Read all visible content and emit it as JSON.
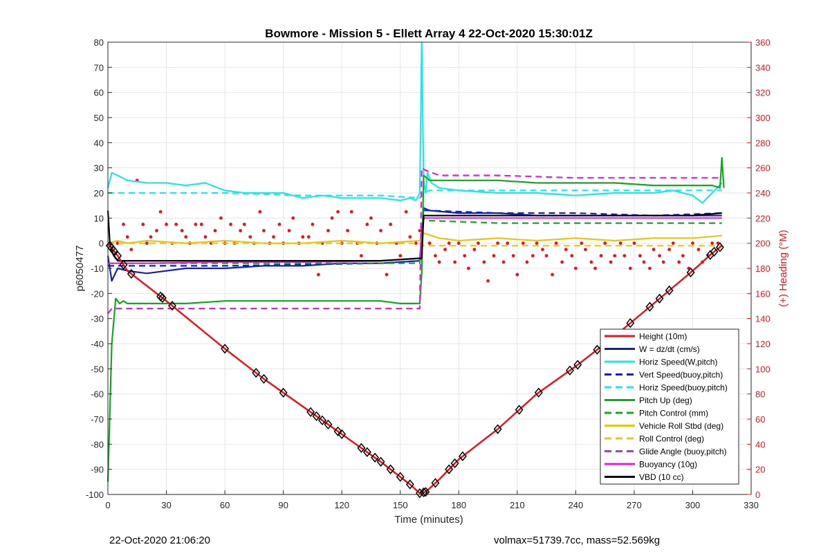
{
  "chart_data": {
    "type": "line",
    "title": "Bowmore - Mission 5 - Ellett Array 4 22-Oct-2020 15:30:01Z",
    "xlabel": "Time (minutes)",
    "ylabel": "p6050477",
    "y2label": "(+) Heading (°M)",
    "xlim": [
      0,
      330
    ],
    "ylim": [
      -100,
      80
    ],
    "y2lim": [
      0,
      360
    ],
    "xticks": [
      0,
      30,
      60,
      90,
      120,
      150,
      180,
      210,
      240,
      270,
      300,
      330
    ],
    "yticks": [
      -100,
      -90,
      -80,
      -70,
      -60,
      -50,
      -40,
      -30,
      -20,
      -10,
      0,
      10,
      20,
      30,
      40,
      50,
      60,
      70,
      80
    ],
    "y2ticks": [
      0,
      20,
      40,
      60,
      80,
      100,
      120,
      140,
      160,
      180,
      200,
      220,
      240,
      260,
      280,
      300,
      320,
      340,
      360
    ],
    "grid": true,
    "legend_position": "lower-right",
    "series": [
      {
        "name": "Height (10m)",
        "color": "#e8141b",
        "style": "solid",
        "x": [
          0,
          5,
          10,
          20,
          30,
          60,
          80,
          100,
          120,
          140,
          155,
          160,
          163,
          170,
          180,
          200,
          220,
          240,
          260,
          280,
          300,
          310,
          315
        ],
        "y": [
          0,
          -5,
          -11,
          -17,
          -23,
          -42,
          -54,
          -65,
          -76,
          -87,
          -96,
          -99.5,
          -99,
          -94,
          -86,
          -74,
          -60,
          -49,
          -37,
          -24,
          -11,
          -4,
          -1
        ]
      },
      {
        "name": "W = dz/dt (cm/s)",
        "color": "#1020b0",
        "style": "solid",
        "x": [
          0,
          2,
          5,
          10,
          20,
          40,
          60,
          80,
          100,
          120,
          140,
          160,
          162,
          165,
          180,
          200,
          220,
          240,
          260,
          280,
          300,
          315
        ],
        "y": [
          -5,
          -15,
          -10,
          -11,
          -12,
          -10,
          -10,
          -9,
          -9,
          -8,
          -8,
          -7,
          14,
          13,
          12,
          12,
          11,
          11,
          11,
          11,
          11,
          11
        ]
      },
      {
        "name": "Horiz Speed(W,pitch)",
        "color": "#1ee6ea",
        "style": "solid",
        "x": [
          0,
          2,
          5,
          10,
          20,
          30,
          40,
          50,
          60,
          70,
          80,
          90,
          100,
          110,
          120,
          130,
          140,
          150,
          155,
          158,
          160,
          161,
          162,
          163,
          164,
          166,
          170,
          180,
          200,
          220,
          240,
          260,
          280,
          290,
          300,
          305,
          310,
          315
        ],
        "y": [
          22,
          28,
          27,
          25,
          24,
          24,
          23,
          24,
          21,
          20,
          20,
          20,
          18,
          19,
          18,
          18,
          18,
          17,
          18,
          17,
          20,
          80,
          25,
          20,
          28,
          24,
          22,
          21,
          20,
          20,
          19,
          20,
          20,
          21,
          19,
          16,
          20,
          24
        ]
      },
      {
        "name": "Vert Speed(buoy,pitch)",
        "color": "#1020b0",
        "style": "dashed",
        "x": [
          0,
          5,
          20,
          60,
          100,
          140,
          160,
          162,
          165,
          200,
          240,
          280,
          315
        ],
        "y": [
          -9,
          -9,
          -9,
          -9,
          -8.5,
          -8,
          -7,
          13,
          13,
          12,
          12,
          11,
          12
        ]
      },
      {
        "name": "Horiz Speed(buoy,pitch)",
        "color": "#1ee6ea",
        "style": "dashed",
        "x": [
          0,
          5,
          20,
          60,
          100,
          140,
          160,
          162,
          165,
          200,
          240,
          280,
          315
        ],
        "y": [
          20,
          20,
          20,
          20,
          19,
          19,
          18,
          20,
          21,
          21,
          21,
          21,
          21
        ]
      },
      {
        "name": "Pitch Up (deg)",
        "color": "#10a81e",
        "style": "solid",
        "x": [
          0,
          2,
          4,
          6,
          8,
          10,
          20,
          40,
          60,
          80,
          100,
          120,
          140,
          150,
          160,
          161,
          162,
          165,
          180,
          200,
          220,
          240,
          260,
          280,
          300,
          310,
          314,
          315,
          316
        ],
        "y": [
          -95,
          -40,
          -22,
          -24,
          -23,
          -24,
          -24,
          -24,
          -23,
          -23,
          -23,
          -23,
          -23,
          -24,
          -24,
          -12,
          27,
          25,
          25,
          25,
          24,
          24,
          24,
          23,
          23,
          23,
          22,
          34,
          22
        ]
      },
      {
        "name": "Pitch Control (mm)",
        "color": "#10a81e",
        "style": "dashed",
        "x": [
          0,
          5,
          20,
          60,
          100,
          140,
          160,
          162,
          165,
          200,
          240,
          280,
          315
        ],
        "y": [
          -8,
          -8,
          -8,
          -8,
          -8,
          -8,
          -8,
          10,
          9,
          8,
          8,
          8,
          8
        ]
      },
      {
        "name": "Vehicle Roll Stbd (deg)",
        "color": "#e8c41a",
        "style": "solid",
        "x": [
          0,
          5,
          10,
          20,
          40,
          60,
          80,
          100,
          120,
          140,
          160,
          162,
          170,
          180,
          200,
          220,
          240,
          260,
          280,
          300,
          315
        ],
        "y": [
          0,
          1,
          0,
          1,
          0,
          1,
          0,
          0,
          1,
          0,
          1,
          4,
          2,
          1,
          2,
          1,
          2,
          1,
          2,
          2,
          3
        ]
      },
      {
        "name": "Roll Control (deg)",
        "color": "#e8c41a",
        "style": "dashed",
        "x": [
          0,
          5,
          20,
          60,
          100,
          140,
          160,
          162,
          170,
          200,
          240,
          280,
          315
        ],
        "y": [
          0,
          0,
          0,
          0,
          0,
          0,
          0,
          -1,
          -1,
          -1,
          -1,
          -1,
          -1
        ]
      },
      {
        "name": "Glide Angle (buoy,pitch)",
        "color": "#e01ee0",
        "style": "dashed",
        "x": [
          0,
          2,
          5,
          20,
          60,
          100,
          140,
          160,
          161,
          163,
          170,
          200,
          240,
          280,
          315
        ],
        "y": [
          -28,
          -26,
          -26,
          -26,
          -26,
          -26,
          -26,
          -26,
          30,
          29,
          27,
          27,
          26,
          26,
          26
        ]
      },
      {
        "name": "Buoyancy (10g)",
        "color": "#e01ee0",
        "style": "solid",
        "x": [
          0,
          5,
          20,
          60,
          100,
          140,
          160,
          162,
          170,
          200,
          240,
          280,
          315
        ],
        "y": [
          -8,
          -8,
          -8,
          -7.5,
          -7.5,
          -7,
          -6,
          10,
          10,
          10,
          10,
          10,
          10
        ]
      },
      {
        "name": "VBD (10 cc)",
        "color": "#000000",
        "style": "solid",
        "x": [
          0,
          1,
          2,
          3,
          4,
          5,
          8,
          20,
          60,
          100,
          140,
          160,
          161,
          162,
          170,
          200,
          240,
          280,
          300,
          315
        ],
        "y": [
          13,
          0,
          -3,
          -5,
          -6,
          -7,
          -7,
          -7,
          -7,
          -7,
          -7,
          -6,
          -6,
          11,
          11,
          11,
          11,
          11,
          11,
          12
        ]
      }
    ],
    "heading_points_deg": {
      "name": "Heading",
      "color": "#e8141b",
      "axis": "right",
      "x": [
        5,
        8,
        10,
        12,
        15,
        18,
        20,
        22,
        25,
        27,
        30,
        33,
        35,
        38,
        40,
        42,
        45,
        48,
        50,
        53,
        55,
        58,
        60,
        63,
        65,
        68,
        70,
        73,
        75,
        78,
        80,
        83,
        85,
        88,
        90,
        93,
        95,
        98,
        100,
        103,
        105,
        108,
        110,
        113,
        115,
        118,
        120,
        123,
        125,
        128,
        130,
        133,
        135,
        138,
        140,
        143,
        145,
        148,
        150,
        153,
        155,
        158,
        160,
        165,
        168,
        170,
        173,
        175,
        178,
        180,
        183,
        185,
        188,
        190,
        193,
        195,
        198,
        200,
        203,
        205,
        208,
        210,
        213,
        215,
        218,
        220,
        223,
        225,
        228,
        230,
        233,
        235,
        238,
        240,
        243,
        245,
        248,
        250,
        253,
        255,
        258,
        260,
        263,
        265,
        268,
        270,
        273,
        275,
        278,
        280,
        283,
        285,
        288,
        290,
        293,
        295,
        298,
        300,
        303,
        305,
        308,
        310,
        313
      ],
      "y": [
        200,
        215,
        205,
        195,
        250,
        215,
        200,
        205,
        210,
        225,
        215,
        200,
        215,
        210,
        205,
        200,
        215,
        215,
        205,
        200,
        210,
        220,
        200,
        215,
        200,
        210,
        215,
        205,
        200,
        225,
        210,
        200,
        205,
        215,
        200,
        210,
        220,
        200,
        205,
        205,
        215,
        175,
        200,
        210,
        220,
        225,
        200,
        210,
        225,
        200,
        190,
        215,
        220,
        200,
        210,
        175,
        215,
        200,
        190,
        225,
        205,
        200,
        210,
        200,
        190,
        185,
        195,
        200,
        185,
        200,
        190,
        180,
        195,
        200,
        185,
        170,
        190,
        200,
        185,
        200,
        190,
        175,
        200,
        185,
        190,
        200,
        195,
        190,
        175,
        200,
        185,
        195,
        190,
        180,
        200,
        195,
        185,
        180,
        190,
        200,
        185,
        190,
        200,
        190,
        180,
        200,
        190,
        185,
        180,
        195,
        190,
        185,
        195,
        200,
        185,
        190,
        180,
        200,
        195,
        185,
        190,
        200,
        200
      ]
    },
    "markers": {
      "x": [
        1,
        2,
        3,
        5,
        8,
        12,
        27,
        28,
        33,
        60,
        76,
        80,
        90,
        104,
        107,
        110,
        113,
        118,
        120,
        130,
        133,
        137,
        140,
        145,
        150,
        155,
        160,
        162,
        163,
        168,
        175,
        178,
        182,
        200,
        211,
        221,
        237,
        241,
        251,
        268,
        278,
        283,
        288,
        299,
        309,
        311,
        314
      ]
    }
  },
  "footer": {
    "date": "22-Oct-2020 21:06:20",
    "info": "volmax=51739.7cc, mass=52.569kg"
  }
}
